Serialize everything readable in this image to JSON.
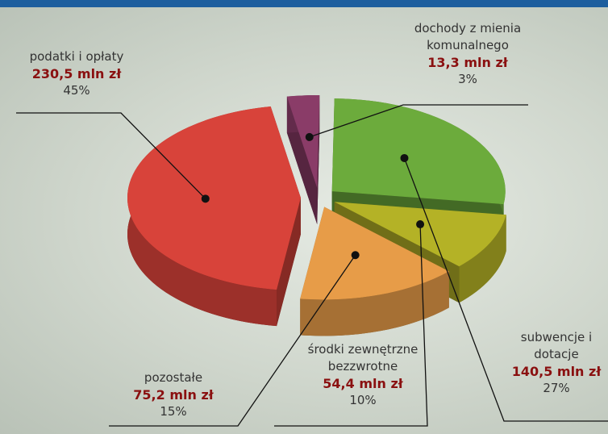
{
  "chart_data": {
    "type": "pie",
    "categories": [
      "dochody z mienia komunalnego",
      "subwencje i dotacje",
      "środki zewnętrzne bezzwrotne",
      "pozostałe",
      "podatki i opłaty"
    ],
    "values": [
      3,
      27,
      10,
      15,
      45
    ],
    "value_labels": [
      "3%",
      "27%",
      "10%",
      "15%",
      "45%"
    ],
    "colors": [
      "#8a3c68",
      "#6cab3c",
      "#b4b226",
      "#e79c48",
      "#d8433a"
    ],
    "amounts": {
      "values": [
        13.3,
        140.5,
        54.4,
        75.2,
        230.5
      ],
      "value_labels": [
        "13,3 mln zł",
        "140,5 mln zł",
        "54,4 mln zł",
        "75,2 mln zł",
        "230,5 mln zł"
      ]
    }
  }
}
